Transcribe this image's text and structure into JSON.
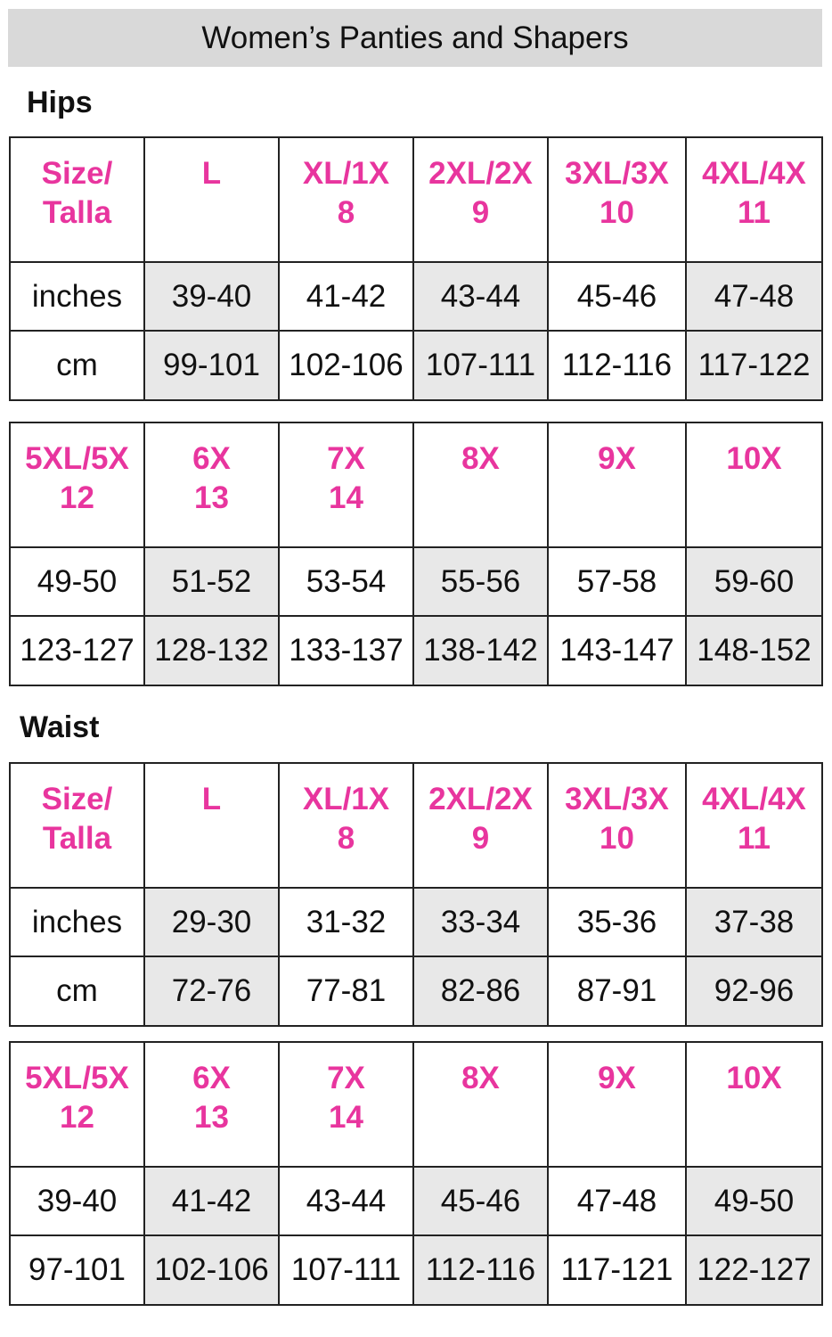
{
  "title": "Women’s Panties and Shapers",
  "accent_color": "#e8359e",
  "shade_color": "#e8e8e8",
  "sections": [
    {
      "label": "Hips",
      "tables": [
        {
          "header": [
            [
              "Size/",
              "Talla"
            ],
            [
              "L",
              ""
            ],
            [
              "XL/1X",
              "8"
            ],
            [
              "2XL/2X",
              "9"
            ],
            [
              "3XL/3X",
              "10"
            ],
            [
              "4XL/4X",
              "11"
            ]
          ],
          "rows": [
            [
              "inches",
              "39-40",
              "41-42",
              "43-44",
              "45-46",
              "47-48"
            ],
            [
              "cm",
              "99-101",
              "102-106",
              "107-111",
              "112-116",
              "117-122"
            ]
          ]
        },
        {
          "header": [
            [
              "5XL/5X",
              "12"
            ],
            [
              "6X",
              "13"
            ],
            [
              "7X",
              "14"
            ],
            [
              "8X",
              ""
            ],
            [
              "9X",
              ""
            ],
            [
              "10X",
              ""
            ]
          ],
          "rows": [
            [
              "49-50",
              "51-52",
              "53-54",
              "55-56",
              "57-58",
              "59-60"
            ],
            [
              "123-127",
              "128-132",
              "133-137",
              "138-142",
              "143-147",
              "148-152"
            ]
          ]
        }
      ]
    },
    {
      "label": "Waist",
      "tables": [
        {
          "header": [
            [
              "Size/",
              "Talla"
            ],
            [
              "L",
              ""
            ],
            [
              "XL/1X",
              "8"
            ],
            [
              "2XL/2X",
              "9"
            ],
            [
              "3XL/3X",
              "10"
            ],
            [
              "4XL/4X",
              "11"
            ]
          ],
          "rows": [
            [
              "inches",
              "29-30",
              "31-32",
              "33-34",
              "35-36",
              "37-38"
            ],
            [
              "cm",
              "72-76",
              "77-81",
              "82-86",
              "87-91",
              "92-96"
            ]
          ]
        },
        {
          "header": [
            [
              "5XL/5X",
              "12"
            ],
            [
              "6X",
              "13"
            ],
            [
              "7X",
              "14"
            ],
            [
              "8X",
              ""
            ],
            [
              "9X",
              ""
            ],
            [
              "10X",
              ""
            ]
          ],
          "rows": [
            [
              "39-40",
              "41-42",
              "43-44",
              "45-46",
              "47-48",
              "49-50"
            ],
            [
              "97-101",
              "102-106",
              "107-111",
              "112-116",
              "117-121",
              "122-127"
            ]
          ]
        }
      ]
    }
  ]
}
